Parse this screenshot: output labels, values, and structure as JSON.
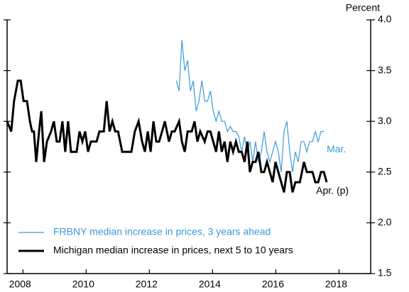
{
  "chart_data": {
    "type": "line",
    "y_axis_label": "Percent",
    "xlim": [
      2008.0,
      2019.5
    ],
    "xticks": [
      {
        "value": 2008.5,
        "label": "2008"
      },
      {
        "value": 2010.5,
        "label": "2010"
      },
      {
        "value": 2012.5,
        "label": "2012"
      },
      {
        "value": 2014.5,
        "label": "2014"
      },
      {
        "value": 2016.5,
        "label": "2016"
      },
      {
        "value": 2018.5,
        "label": "2018"
      }
    ],
    "ylim": [
      1.5,
      4.0
    ],
    "yticks": [
      1.5,
      {
        "value": 2,
        "label": "2.0"
      },
      2.5,
      {
        "value": 3,
        "label": "3.0"
      },
      3.5,
      {
        "value": 4,
        "label": "4.0"
      }
    ],
    "legend": "lower left",
    "annotations": [
      "Mar.",
      "Apr. (p)"
    ],
    "series": [
      {
        "name": "FRBNY median increase in prices, 3 years ahead",
        "color": "#3a9ad9",
        "width": 1.2,
        "x": [
          2013.35,
          2013.44,
          2013.53,
          2013.62,
          2013.71,
          2013.8,
          2013.89,
          2013.98,
          2014.07,
          2014.16,
          2014.25,
          2014.34,
          2014.43,
          2014.52,
          2014.61,
          2014.7,
          2014.79,
          2014.88,
          2014.97,
          2015.06,
          2015.15,
          2015.24,
          2015.33,
          2015.42,
          2015.51,
          2015.6,
          2015.68,
          2015.77,
          2015.86,
          2015.95,
          2016.04,
          2016.13,
          2016.22,
          2016.31,
          2016.4,
          2016.49,
          2016.58,
          2016.67,
          2016.76,
          2016.85,
          2016.94,
          2017.03,
          2017.12,
          2017.21,
          2017.3,
          2017.39,
          2017.48,
          2017.57,
          2017.66,
          2017.75,
          2017.84,
          2017.93,
          2018.02
        ],
        "values": [
          3.4,
          3.3,
          3.8,
          3.5,
          3.6,
          3.3,
          3.4,
          3.1,
          3.2,
          3.4,
          3.2,
          3.2,
          3.3,
          3.1,
          3.0,
          3.1,
          3.0,
          3.0,
          2.9,
          2.95,
          2.9,
          2.9,
          2.85,
          2.7,
          2.85,
          2.7,
          2.8,
          2.6,
          2.8,
          2.6,
          2.7,
          2.9,
          2.7,
          2.6,
          2.7,
          2.8,
          2.7,
          2.5,
          2.9,
          3.0,
          2.7,
          2.5,
          2.7,
          2.6,
          2.8,
          2.8,
          2.7,
          2.8,
          2.8,
          2.9,
          2.8,
          2.9,
          2.9
        ]
      },
      {
        "name": "Michigan median increase in prices, next 5 to 10 years",
        "color": "#000000",
        "width": 3,
        "x": [
          2008.0,
          2008.13,
          2008.22,
          2008.34,
          2008.43,
          2008.52,
          2008.63,
          2008.72,
          2008.79,
          2008.85,
          2008.92,
          2009.01,
          2009.08,
          2009.17,
          2009.26,
          2009.39,
          2009.48,
          2009.57,
          2009.66,
          2009.75,
          2009.84,
          2009.93,
          2010.02,
          2010.2,
          2010.29,
          2010.38,
          2010.47,
          2010.56,
          2010.65,
          2010.83,
          2010.92,
          2011.06,
          2011.15,
          2011.24,
          2011.33,
          2011.42,
          2011.51,
          2011.64,
          2011.93,
          2012.04,
          2012.16,
          2012.27,
          2012.36,
          2012.45,
          2012.54,
          2012.63,
          2012.72,
          2012.81,
          2012.9,
          2012.99,
          2013.12,
          2013.21,
          2013.3,
          2013.44,
          2013.53,
          2013.62,
          2013.71,
          2013.84,
          2013.93,
          2014.02,
          2014.11,
          2014.25,
          2014.34,
          2014.43,
          2014.52,
          2014.61,
          2014.7,
          2014.79,
          2014.88,
          2014.97,
          2015.06,
          2015.15,
          2015.24,
          2015.33,
          2015.42,
          2015.51,
          2015.6,
          2015.68,
          2015.77,
          2015.86,
          2015.95,
          2016.04,
          2016.13,
          2016.22,
          2016.31,
          2016.4,
          2016.49,
          2016.58,
          2016.67,
          2016.76,
          2016.85,
          2016.94,
          2017.03,
          2017.12,
          2017.26,
          2017.39,
          2017.48,
          2017.57,
          2017.66,
          2017.75,
          2017.84,
          2017.93,
          2018.02,
          2018.11
        ],
        "values": [
          3.0,
          2.9,
          3.2,
          3.4,
          3.4,
          3.2,
          3.2,
          3.0,
          2.9,
          2.9,
          2.6,
          2.9,
          3.1,
          2.6,
          2.8,
          2.9,
          3.0,
          2.8,
          2.8,
          3.0,
          2.7,
          3.0,
          2.7,
          2.7,
          2.9,
          2.8,
          2.9,
          2.7,
          2.8,
          2.8,
          2.9,
          2.9,
          3.2,
          2.9,
          3.0,
          2.9,
          2.9,
          2.7,
          2.7,
          2.9,
          3.0,
          2.8,
          2.7,
          2.9,
          2.7,
          3.0,
          2.8,
          2.8,
          2.9,
          3.0,
          2.8,
          2.9,
          2.9,
          3.0,
          2.8,
          2.7,
          2.9,
          2.9,
          3.0,
          2.8,
          2.9,
          2.8,
          2.9,
          2.9,
          2.8,
          2.7,
          2.9,
          2.7,
          2.8,
          2.6,
          2.8,
          2.7,
          2.8,
          2.7,
          2.7,
          2.6,
          2.8,
          2.5,
          2.6,
          2.6,
          2.7,
          2.5,
          2.5,
          2.6,
          2.5,
          2.4,
          2.6,
          2.5,
          2.4,
          2.3,
          2.5,
          2.5,
          2.3,
          2.4,
          2.4,
          2.6,
          2.5,
          2.5,
          2.5,
          2.4,
          2.4,
          2.5,
          2.5,
          2.4
        ]
      }
    ]
  }
}
